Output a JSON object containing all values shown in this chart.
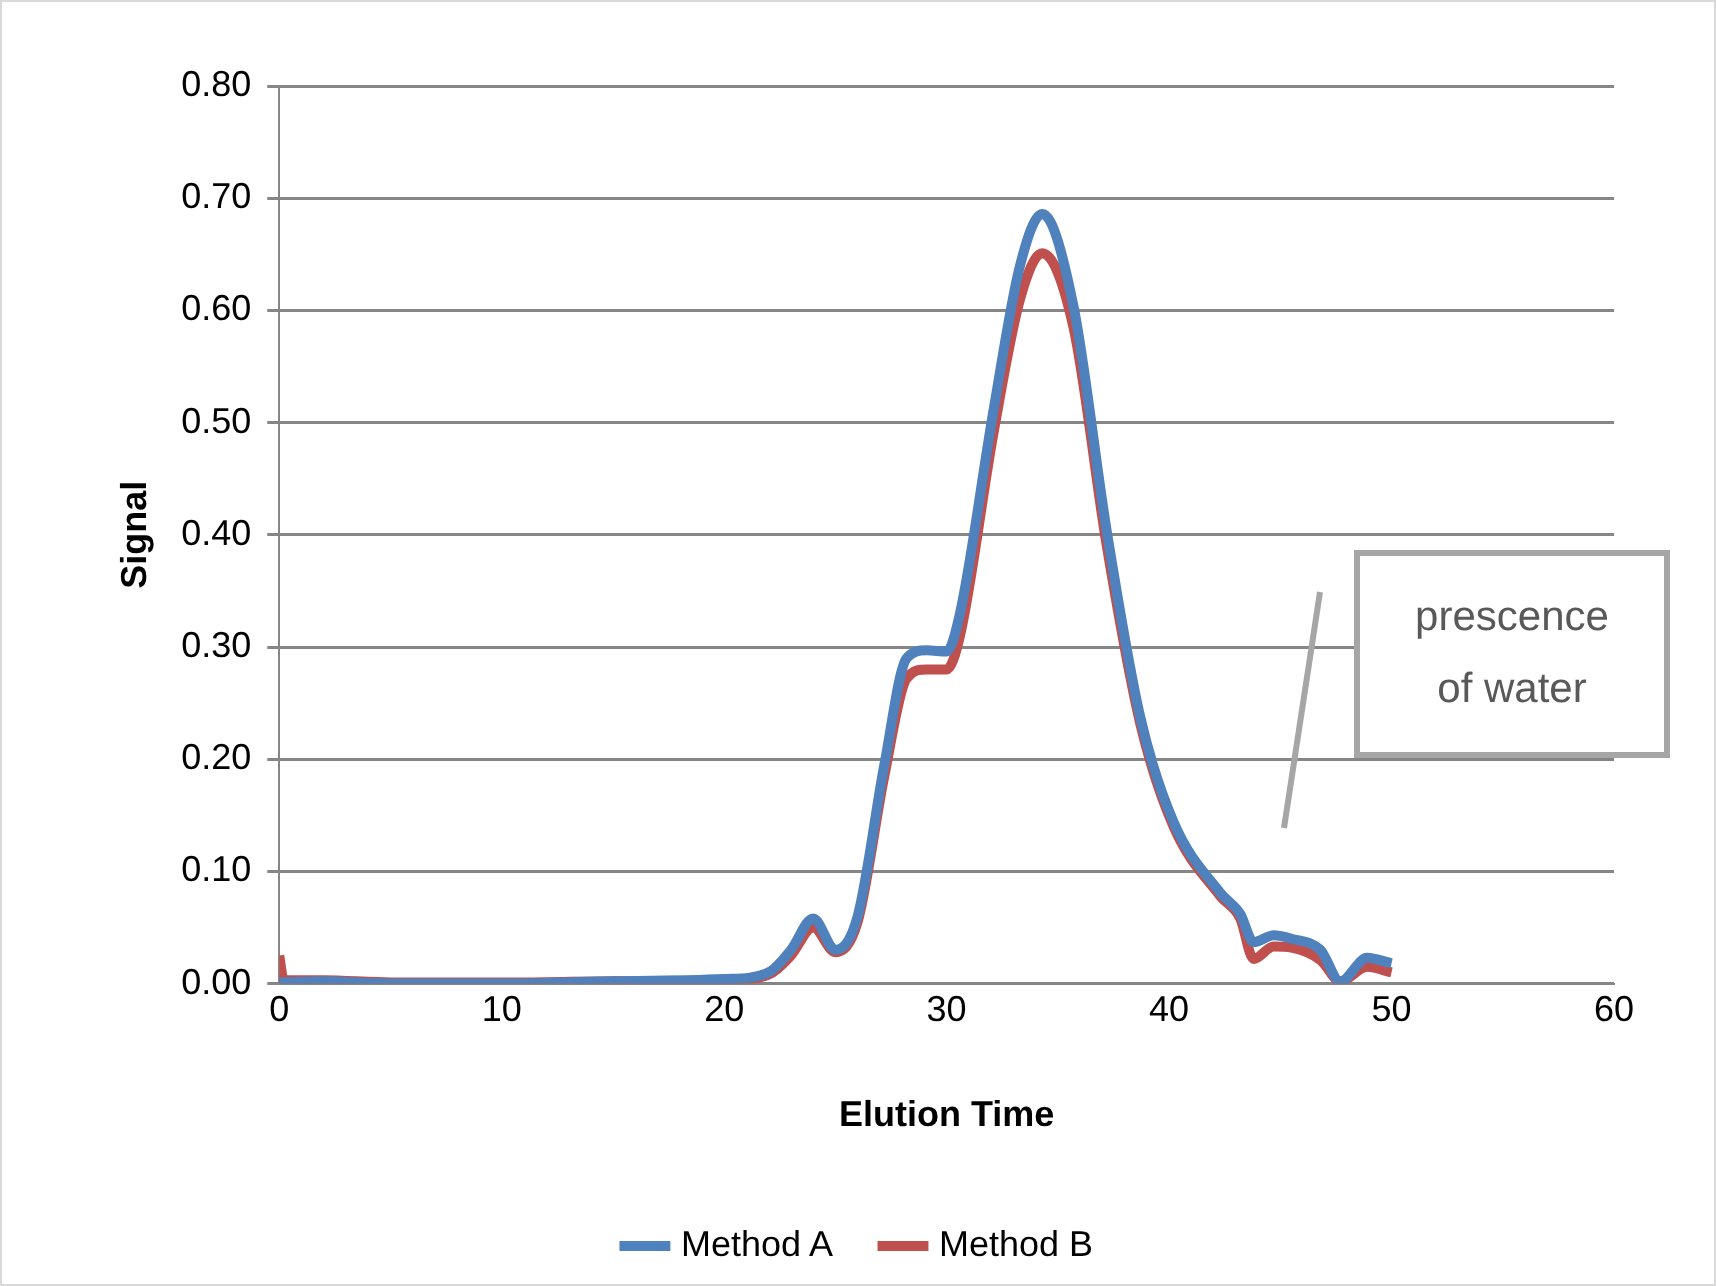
{
  "chart_data": {
    "type": "line",
    "xlabel": "Elution Time",
    "ylabel": "Signal",
    "xlim": [
      0,
      60
    ],
    "xticks": [
      0,
      10,
      20,
      30,
      40,
      50,
      60
    ],
    "ylim": [
      0,
      0.8
    ],
    "yticks": [
      {
        "value": 0,
        "label": "0.00"
      },
      {
        "value": 0.1,
        "label": "0.10"
      },
      {
        "value": 0.2,
        "label": "0.20"
      },
      {
        "value": 0.3,
        "label": "0.30"
      },
      {
        "value": 0.4,
        "label": "0.40"
      },
      {
        "value": 0.5,
        "label": "0.50"
      },
      {
        "value": 0.6,
        "label": "0.60"
      },
      {
        "value": 0.7,
        "label": "0.70"
      },
      {
        "value": 0.8,
        "label": "0.80"
      }
    ],
    "grid": "y",
    "legend": "bottom",
    "marker": "none",
    "line_style": "solid",
    "series": [
      {
        "name": "Method A",
        "color": "#4f81bd",
        "x": [
          0,
          2,
          5,
          10,
          15,
          20,
          22,
          23,
          24,
          25,
          26,
          27.2,
          28.2,
          29.1,
          30,
          30.6,
          32.1,
          33.3,
          34.3,
          35.7,
          37.2,
          38.7,
          40.2,
          42.3,
          43.2,
          43.8,
          44.7,
          45.5,
          46.8,
          47.7,
          48.9,
          50
        ],
        "values": [
          0.001,
          0.002,
          0.0,
          0.0,
          0.002,
          0.004,
          0.01,
          0.03,
          0.058,
          0.03,
          0.06,
          0.195,
          0.29,
          0.297,
          0.296,
          0.33,
          0.51,
          0.64,
          0.686,
          0.604,
          0.403,
          0.238,
          0.144,
          0.081,
          0.062,
          0.037,
          0.043,
          0.04,
          0.03,
          0.002,
          0.023,
          0.018
        ]
      },
      {
        "name": "Method B",
        "color": "#c0504d",
        "x": [
          0,
          0.2,
          2,
          5,
          10,
          15,
          20,
          22,
          23,
          24,
          25,
          26,
          27.2,
          28.2,
          29.1,
          30,
          30.6,
          32.1,
          33.3,
          34.3,
          35.7,
          37.2,
          38.7,
          40.2,
          42.3,
          43.2,
          43.8,
          44.7,
          45.5,
          46.8,
          47.7,
          48.9,
          50
        ],
        "values": [
          0.025,
          0.003,
          0.003,
          0.001,
          0.001,
          0.002,
          0.003,
          0.008,
          0.025,
          0.05,
          0.028,
          0.055,
          0.185,
          0.272,
          0.28,
          0.28,
          0.31,
          0.49,
          0.61,
          0.651,
          0.585,
          0.39,
          0.232,
          0.14,
          0.078,
          0.058,
          0.022,
          0.033,
          0.032,
          0.021,
          0.002,
          0.015,
          0.01
        ]
      }
    ],
    "annotations": [
      "prescence of water"
    ]
  }
}
